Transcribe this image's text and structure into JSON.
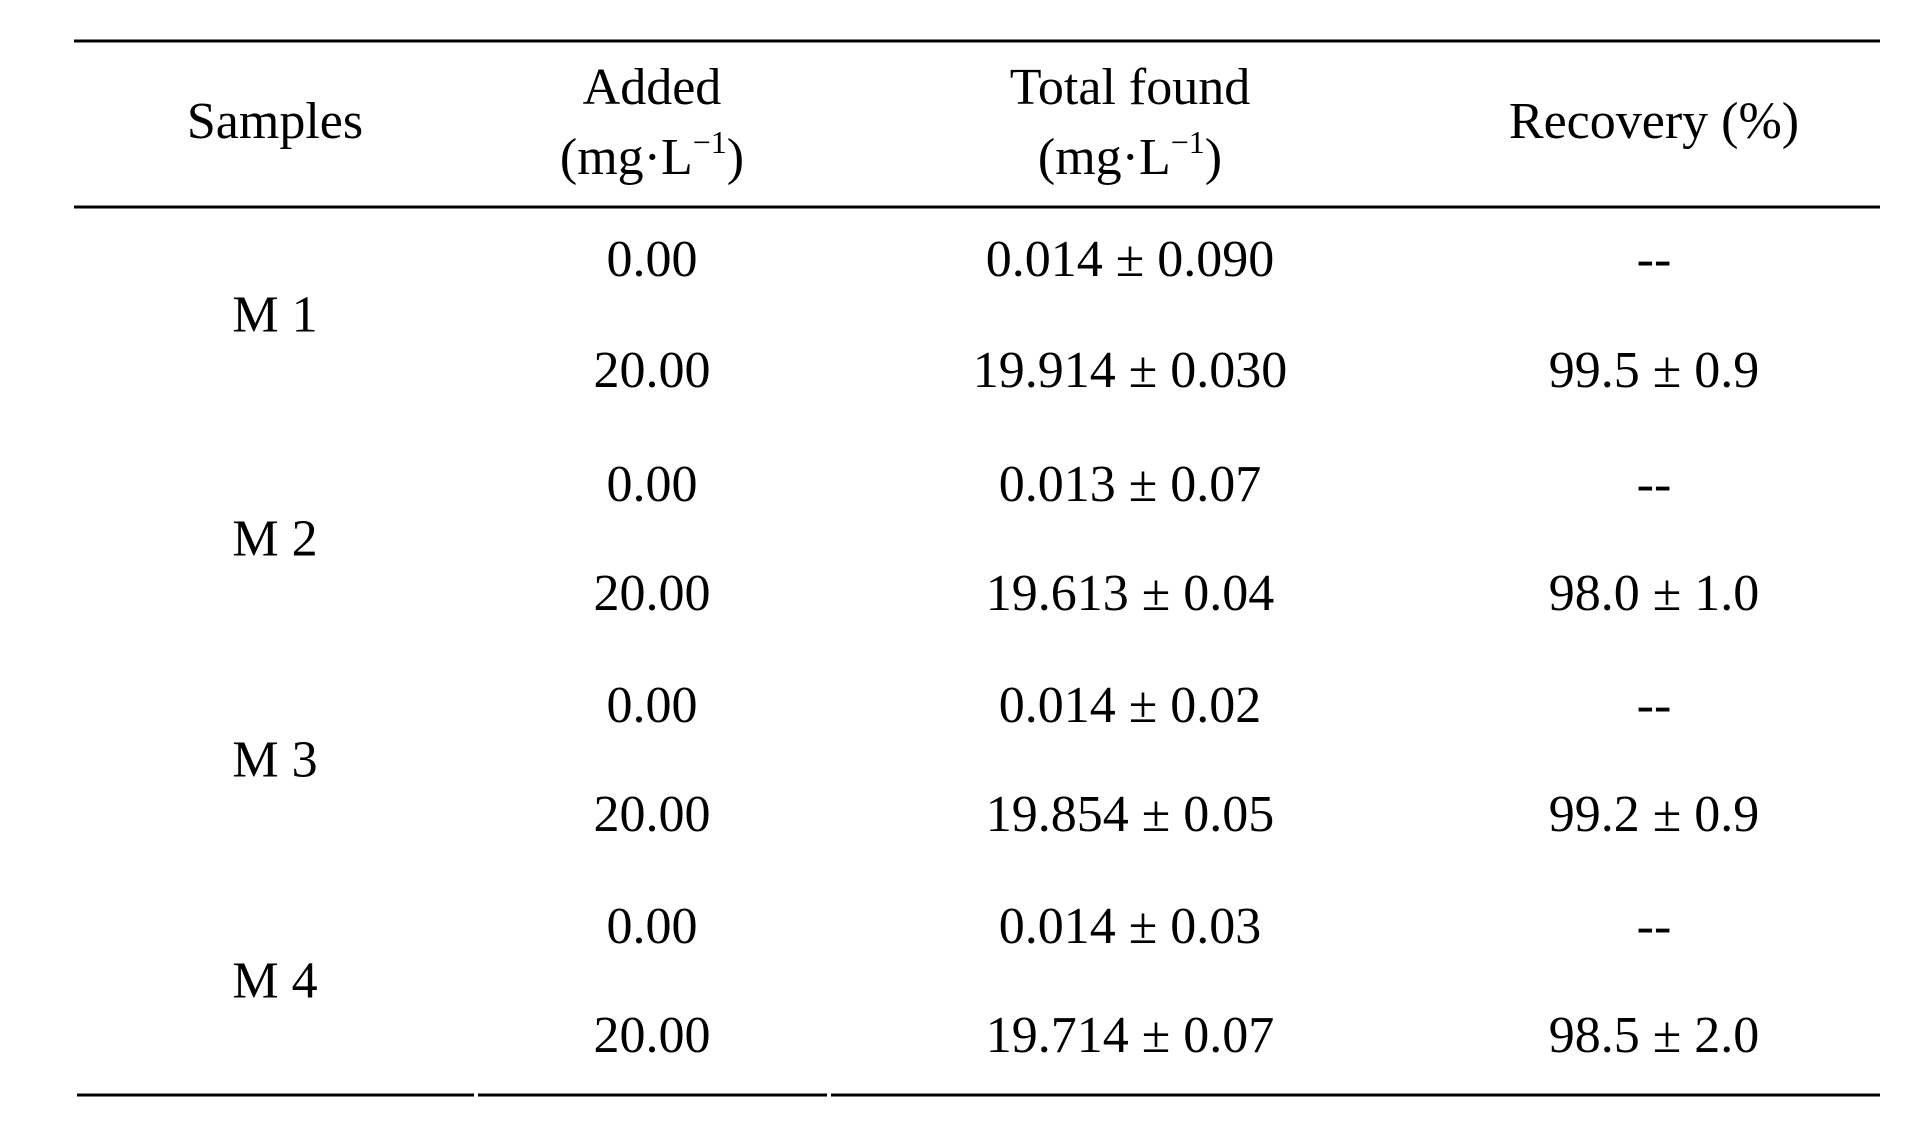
{
  "table": {
    "headers": [
      {
        "label": "Samples"
      },
      {
        "label": "Added",
        "unit_open": "(mg·L",
        "unit_sup": "−1",
        "unit_close": ")"
      },
      {
        "label": "Total found",
        "unit_open": "(mg·L",
        "unit_sup": "−1",
        "unit_close": ")"
      },
      {
        "label": "Recovery (%)"
      }
    ],
    "groups": [
      {
        "sample": "M 1",
        "rows": [
          [
            "0.00",
            "0.014 ± 0.090",
            "--"
          ],
          [
            "20.00",
            "19.914 ± 0.030",
            "99.5 ± 0.9"
          ]
        ]
      },
      {
        "sample": "M 2",
        "rows": [
          [
            "0.00",
            "0.013 ± 0.07",
            "--"
          ],
          [
            "20.00",
            "19.613 ± 0.04",
            "98.0 ± 1.0"
          ]
        ]
      },
      {
        "sample": "M 3",
        "rows": [
          [
            "0.00",
            "0.014 ± 0.02",
            "--"
          ],
          [
            "20.00",
            "19.854 ± 0.05",
            "99.2 ± 0.9"
          ]
        ]
      },
      {
        "sample": "M 4",
        "rows": [
          [
            "0.00",
            "0.014 ± 0.03",
            "--"
          ],
          [
            "20.00",
            "19.714 ± 0.07",
            "98.5 ± 2.0"
          ]
        ]
      }
    ]
  }
}
